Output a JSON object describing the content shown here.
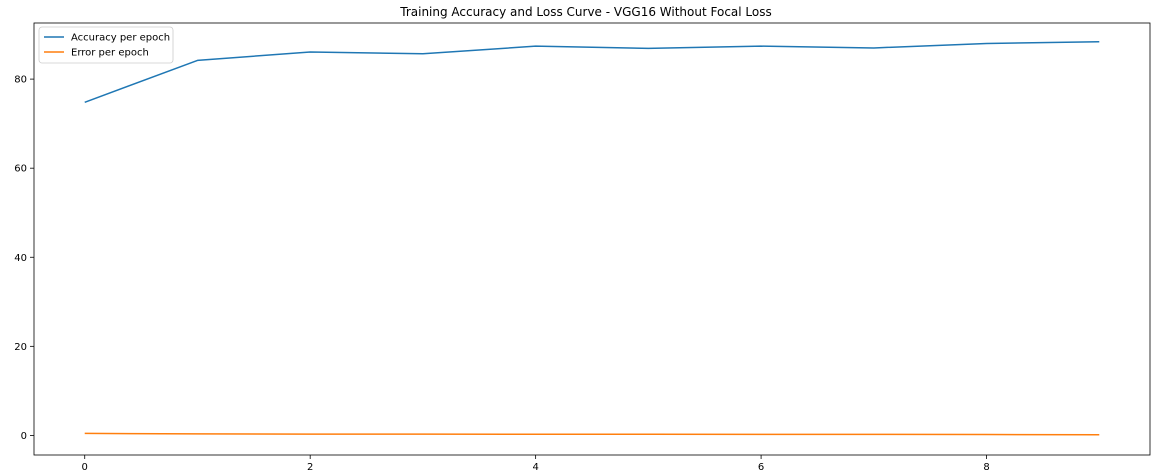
{
  "chart_data": {
    "type": "line",
    "title": "Training Accuracy and Loss Curve - VGG16 Without Focal Loss",
    "xlabel": "",
    "ylabel": "",
    "x": [
      0,
      1,
      2,
      3,
      4,
      5,
      6,
      7,
      8,
      9
    ],
    "xlim": [
      -0.45,
      9.45
    ],
    "ylim": [
      -4.4,
      92.6
    ],
    "xticks": [
      0,
      2,
      4,
      6,
      8
    ],
    "yticks": [
      0,
      20,
      40,
      60,
      80
    ],
    "grid": false,
    "legend_position": "top-left",
    "series": [
      {
        "name": "Accuracy per epoch",
        "color": "#1f77b4",
        "values": [
          74.8,
          84.2,
          86.1,
          85.7,
          87.4,
          86.9,
          87.4,
          87.0,
          88.0,
          88.4
        ]
      },
      {
        "name": "Error per epoch",
        "color": "#ff7f0e",
        "values": [
          0.45,
          0.35,
          0.3,
          0.28,
          0.26,
          0.25,
          0.24,
          0.22,
          0.2,
          0.15
        ]
      }
    ]
  }
}
